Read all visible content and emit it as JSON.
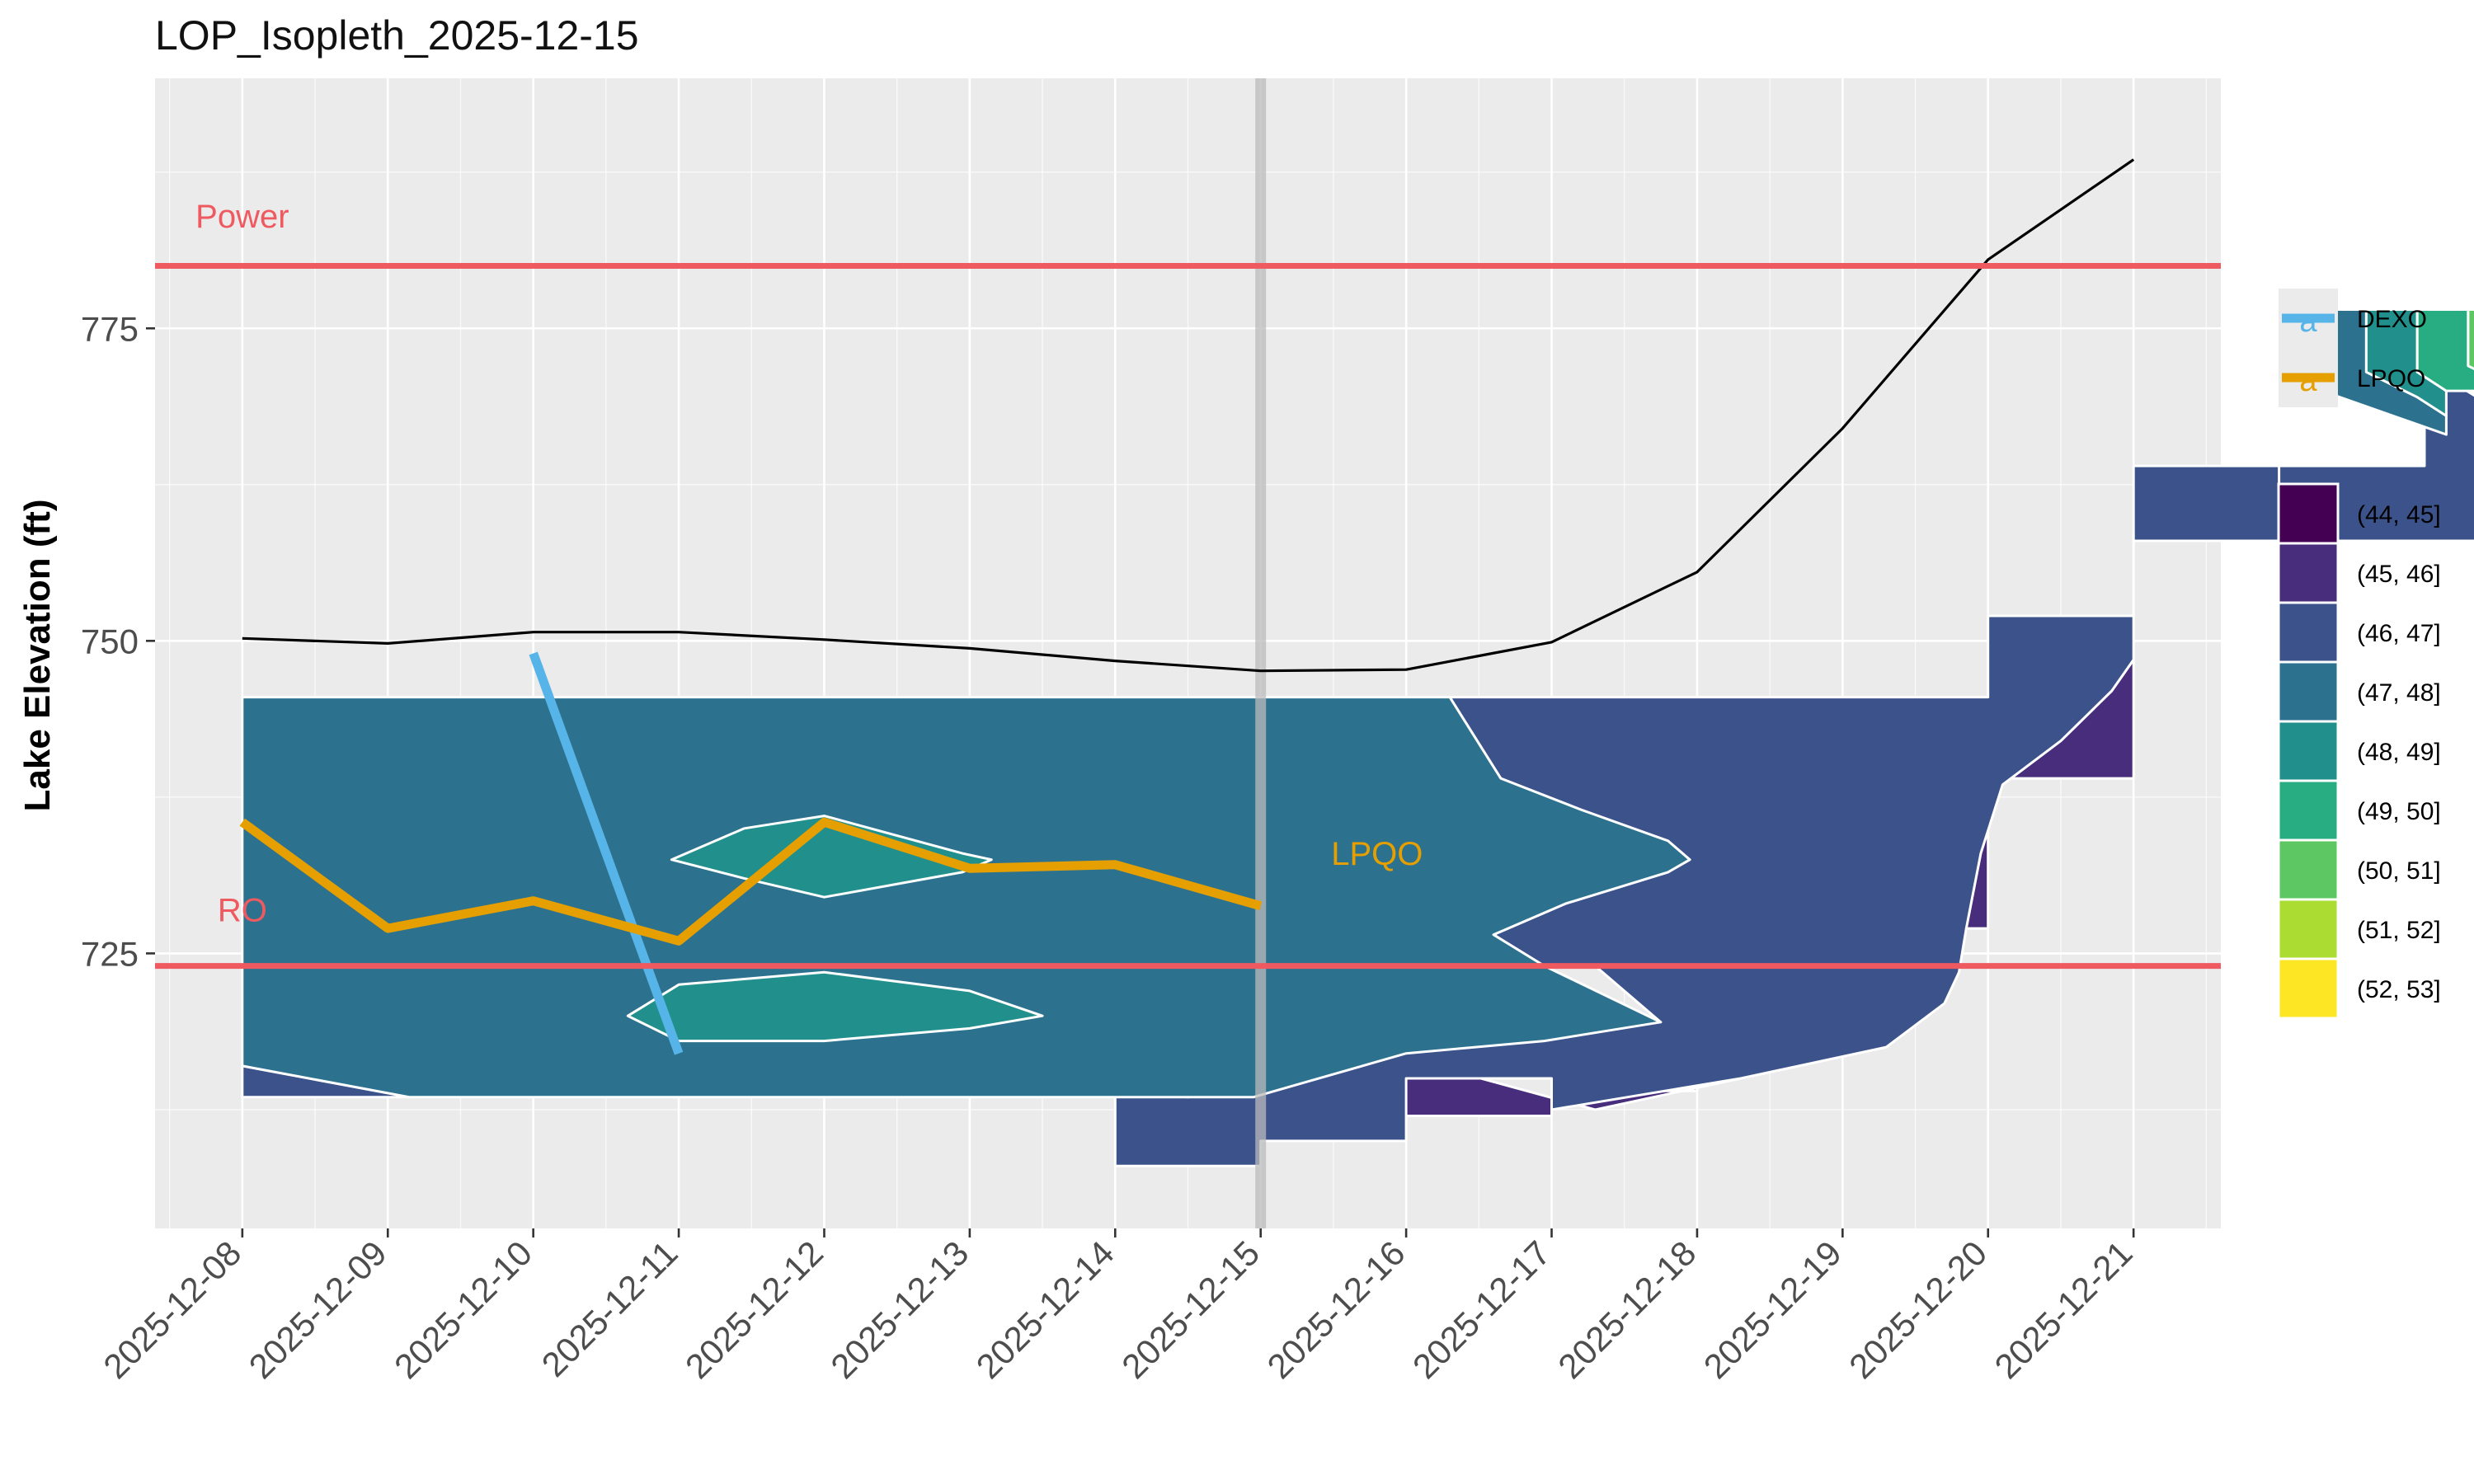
{
  "chart_data": {
    "type": "contour",
    "title": "LOP_Isopleth_2025-12-15",
    "xlabel": "",
    "ylabel": "Lake Elevation (ft)",
    "x_categories": [
      "2025-12-08",
      "2025-12-09",
      "2025-12-10",
      "2025-12-11",
      "2025-12-12",
      "2025-12-13",
      "2025-12-14",
      "2025-12-15",
      "2025-12-16",
      "2025-12-17",
      "2025-12-18",
      "2025-12-19",
      "2025-12-20",
      "2025-12-21"
    ],
    "y_ticks": [
      725,
      750,
      775
    ],
    "ylim": [
      703,
      795
    ],
    "grid": true,
    "current_date": "2025-12-15",
    "colors": {
      "panel": "#EBEBEB",
      "grid_major": "#FFFFFF",
      "threshold": "#EE5A5F",
      "surface_line": "#000000",
      "current_date_line": "#BBBBBB",
      "DEXO": "#56B4E9",
      "LPQO": "#E69F00"
    },
    "surface_elevation": {
      "dates": [
        "2025-12-08",
        "2025-12-09",
        "2025-12-10",
        "2025-12-11",
        "2025-12-12",
        "2025-12-13",
        "2025-12-14",
        "2025-12-15",
        "2025-12-16",
        "2025-12-17",
        "2025-12-18",
        "2025-12-19",
        "2025-12-20",
        "2025-12-21"
      ],
      "values": [
        750.2,
        749.8,
        750.7,
        750.7,
        750.1,
        749.4,
        748.4,
        747.6,
        747.7,
        749.9,
        755.5,
        767.0,
        780.5,
        788.5
      ]
    },
    "thresholds": [
      {
        "label": "Power",
        "elevation": 780
      },
      {
        "label": "RO",
        "elevation": 724
      }
    ],
    "series": [
      {
        "name": "DEXO",
        "dates": [
          "2025-12-10",
          "2025-12-11"
        ],
        "values": [
          749.0,
          717.0
        ]
      },
      {
        "name": "LPQO",
        "dates": [
          "2025-12-08",
          "2025-12-09",
          "2025-12-10",
          "2025-12-11",
          "2025-12-12",
          "2025-12-13",
          "2025-12-14",
          "2025-12-15"
        ],
        "values": [
          735.5,
          727.0,
          729.2,
          726.0,
          735.5,
          731.8,
          732.1,
          728.8
        ]
      }
    ],
    "annotations": [
      {
        "text": "Power",
        "date": "2025-12-08",
        "elevation": 784,
        "color": "#EE5A5F"
      },
      {
        "text": "RO",
        "date": "2025-12-08",
        "elevation": 728.5,
        "color": "#EE5A5F"
      },
      {
        "text": "LPQO",
        "date": "2025-12-15.8",
        "elevation": 733,
        "color": "#E69F00"
      }
    ],
    "line_legend": [
      {
        "name": "DEXO",
        "color": "#56B4E9",
        "key_glyph": "a"
      },
      {
        "name": "LPQO",
        "color": "#E69F00",
        "key_glyph": "a"
      }
    ],
    "fill_legend": [
      {
        "label": "(44, 45]",
        "color": "#440154"
      },
      {
        "label": "(45, 46]",
        "color": "#472D7B"
      },
      {
        "label": "(46, 47]",
        "color": "#3B528B"
      },
      {
        "label": "(47, 48]",
        "color": "#2C728E"
      },
      {
        "label": "(48, 49]",
        "color": "#21908C"
      },
      {
        "label": "(49, 50]",
        "color": "#27AD81"
      },
      {
        "label": "(50, 51]",
        "color": "#5DC863"
      },
      {
        "label": "(51, 52]",
        "color": "#AADC32"
      },
      {
        "label": "(52, 53]",
        "color": "#FDE725"
      }
    ],
    "legend_placement": "right",
    "contour_bands": [
      {
        "band": "(45, 46]",
        "polygon": [
          [
            14,
            723
          ],
          [
            14,
            717
          ],
          [
            15,
            717
          ],
          [
            15,
            712
          ],
          [
            17,
            712
          ],
          [
            17,
            714
          ],
          [
            18,
            714
          ],
          [
            18,
            720
          ],
          [
            19,
            720
          ],
          [
            19,
            727
          ],
          [
            20,
            727
          ],
          [
            20,
            739
          ],
          [
            21,
            739
          ],
          [
            21,
            740
          ],
          [
            21,
            748.5
          ],
          [
            20.85,
            746
          ],
          [
            20.5,
            742
          ],
          [
            20.1,
            738.5
          ],
          [
            19.95,
            733
          ],
          [
            19.85,
            727
          ],
          [
            19.8,
            723.5
          ],
          [
            19.7,
            721
          ],
          [
            19.3,
            717.5
          ],
          [
            18.3,
            715
          ],
          [
            17.3,
            712.5
          ]
        ]
      },
      {
        "band": "(46, 47]",
        "polygon": [
          [
            8,
            716
          ],
          [
            8,
            713.5
          ],
          [
            9.15,
            713.5
          ],
          [
            8,
            716
          ]
        ]
      },
      {
        "band": "(46, 47]",
        "polygon": [
          [
            14,
            714
          ],
          [
            14,
            708
          ],
          [
            15,
            708
          ],
          [
            15,
            710
          ],
          [
            16,
            710
          ],
          [
            16,
            715
          ],
          [
            17,
            715
          ],
          [
            17,
            712.5
          ],
          [
            18.3,
            715
          ],
          [
            19.3,
            717.5
          ],
          [
            19.7,
            721
          ],
          [
            19.8,
            723.5
          ],
          [
            19.85,
            727
          ],
          [
            19.95,
            733
          ],
          [
            20.1,
            738.5
          ],
          [
            20.5,
            742
          ],
          [
            20.85,
            746
          ],
          [
            21,
            748.5
          ],
          [
            21,
            758
          ],
          [
            22,
            758
          ],
          [
            22,
            764
          ],
          [
            23,
            764
          ],
          [
            23,
            776
          ],
          [
            23.15,
            776
          ],
          [
            23.15,
            771
          ],
          [
            23.5,
            768.5
          ],
          [
            24,
            766
          ],
          [
            24,
            762
          ],
          [
            24,
            758
          ],
          [
            22,
            758
          ],
          [
            22,
            764
          ],
          [
            21,
            764
          ],
          [
            21,
            752
          ],
          [
            20,
            752
          ],
          [
            20,
            745.5
          ],
          [
            16.3,
            745.5
          ],
          [
            16.65,
            739
          ],
          [
            17.2,
            736.5
          ],
          [
            17.8,
            734
          ],
          [
            17.95,
            732.5
          ],
          [
            17.8,
            731.5
          ],
          [
            17.1,
            729
          ],
          [
            16.6,
            726.5
          ],
          [
            16.95,
            724
          ],
          [
            17.3,
            724
          ],
          [
            17.75,
            719.5
          ],
          [
            17.25,
            721
          ],
          [
            16.7,
            721
          ],
          [
            16.4,
            718
          ],
          [
            15.3,
            716.5
          ],
          [
            14.95,
            714.5
          ],
          [
            14.5,
            713.5
          ]
        ]
      },
      {
        "band": "(47, 48]",
        "polygon": [
          [
            8,
            745.5
          ],
          [
            16.3,
            745.5
          ],
          [
            16.65,
            739
          ],
          [
            17.2,
            736.5
          ],
          [
            17.8,
            734
          ],
          [
            17.95,
            732.5
          ],
          [
            17.8,
            731.5
          ],
          [
            17.1,
            729
          ],
          [
            16.6,
            726.5
          ],
          [
            16.95,
            724
          ],
          [
            17.75,
            719.5
          ],
          [
            16.95,
            718
          ],
          [
            16,
            717
          ],
          [
            15.25,
            714.5
          ],
          [
            14.95,
            713.5
          ],
          [
            9.15,
            713.5
          ],
          [
            8,
            716
          ]
        ]
      },
      {
        "band": "(48, 49]",
        "polygon": [
          [
            10.95,
            732.5
          ],
          [
            11.45,
            735
          ],
          [
            12,
            736
          ],
          [
            12.95,
            733
          ],
          [
            13.15,
            732.5
          ],
          [
            12.95,
            731.5
          ],
          [
            12,
            729.5
          ],
          [
            11.45,
            731
          ],
          [
            10.95,
            732.5
          ]
        ]
      },
      {
        "band": "(48, 49]",
        "polygon": [
          [
            10.65,
            720
          ],
          [
            11,
            722.5
          ],
          [
            12,
            723.5
          ],
          [
            13,
            722
          ],
          [
            13.5,
            720
          ],
          [
            13,
            719
          ],
          [
            12,
            718
          ],
          [
            11,
            718
          ],
          [
            10.65,
            720
          ]
        ]
      },
      {
        "band": "(47, 48]",
        "polygon": [
          [
            22.05,
            776.5
          ],
          [
            22.6,
            776.5
          ],
          [
            22.6,
            771.5
          ],
          [
            22.95,
            769.5
          ],
          [
            23.15,
            768
          ],
          [
            23.15,
            766.5
          ],
          [
            22.05,
            771
          ]
        ]
      },
      {
        "band": "(48, 49]",
        "polygon": [
          [
            22.6,
            776.5
          ],
          [
            22.95,
            776.5
          ],
          [
            22.95,
            771.5
          ],
          [
            23.15,
            770
          ],
          [
            23.15,
            768
          ],
          [
            22.95,
            769.5
          ],
          [
            22.6,
            771.5
          ]
        ]
      },
      {
        "band": "(49, 50]",
        "polygon": [
          [
            22.95,
            776.5
          ],
          [
            23.3,
            776.5
          ],
          [
            23.3,
            772
          ],
          [
            23.5,
            771
          ],
          [
            23.65,
            770
          ],
          [
            23.15,
            770
          ],
          [
            22.95,
            771.5
          ]
        ]
      },
      {
        "band": "(50, 51]",
        "polygon": [
          [
            23.3,
            776.5
          ],
          [
            23.65,
            776.5
          ],
          [
            23.65,
            772.5
          ],
          [
            23.85,
            771.5
          ],
          [
            24,
            770.5
          ],
          [
            23.65,
            770
          ],
          [
            23.3,
            772
          ]
        ]
      },
      {
        "band": "(51, 52]",
        "polygon": [
          [
            23.65,
            776.5
          ],
          [
            23.95,
            776.5
          ],
          [
            23.95,
            773
          ],
          [
            24,
            772.5
          ],
          [
            24,
            770.5
          ],
          [
            23.85,
            771.5
          ],
          [
            23.65,
            772.5
          ]
        ]
      },
      {
        "band": "(52, 53]",
        "polygon": [
          [
            23.95,
            776.5
          ],
          [
            24,
            776.5
          ],
          [
            24,
            772.5
          ],
          [
            23.95,
            773
          ]
        ]
      }
    ]
  }
}
